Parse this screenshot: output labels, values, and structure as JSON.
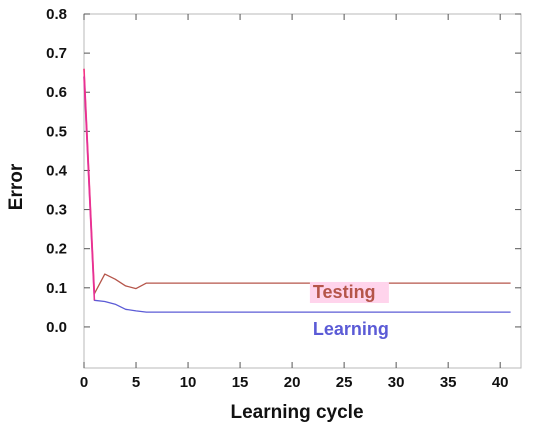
{
  "chart_data": {
    "type": "line",
    "xlabel": "Learning cycle",
    "ylabel": "Error",
    "xlim": [
      0,
      42
    ],
    "ylim": [
      -0.105,
      0.8
    ],
    "x_ticks": [
      0,
      5,
      10,
      15,
      20,
      25,
      30,
      35,
      40
    ],
    "y_ticks": [
      0.0,
      0.1,
      0.2,
      0.3,
      0.4,
      0.5,
      0.6,
      0.7,
      0.8
    ],
    "x_tick_labels": [
      "0",
      "5",
      "10",
      "15",
      "20",
      "25",
      "30",
      "35",
      "40"
    ],
    "y_tick_labels": [
      "0.0",
      "0.1",
      "0.2",
      "0.3",
      "0.4",
      "0.5",
      "0.6",
      "0.7",
      "0.8"
    ],
    "grid": false,
    "series": [
      {
        "name": "Testing",
        "color": "#b5554a",
        "label_bg": "#ffd4ec",
        "x": [
          0,
          1,
          2,
          3,
          4,
          5,
          6,
          41
        ],
        "y": [
          0.66,
          0.085,
          0.135,
          0.122,
          0.105,
          0.098,
          0.112,
          0.112
        ]
      },
      {
        "name": "Learning",
        "color": "#5b5bd6",
        "x": [
          0,
          1,
          2,
          3,
          4,
          5,
          6,
          41
        ],
        "y": [
          0.64,
          0.068,
          0.065,
          0.058,
          0.045,
          0.041,
          0.038,
          0.038
        ]
      }
    ],
    "plot_frame_color": "#b8b8b8",
    "spike_color": "#ff2a8a"
  }
}
